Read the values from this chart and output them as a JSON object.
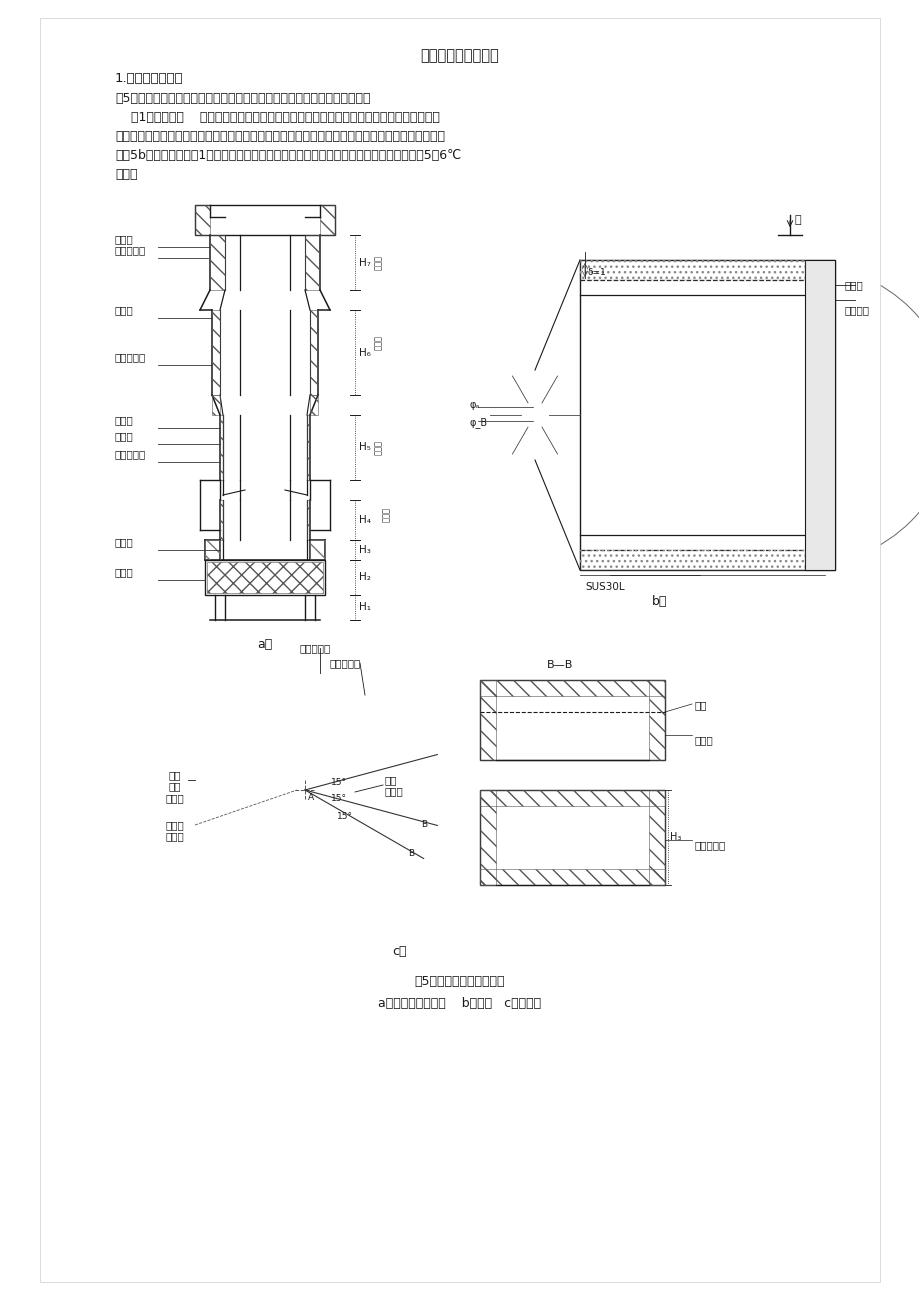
{
  "title": "外热冲天炉炉体结构",
  "background_color": "#ffffff",
  "text_color": "#1a1a1a",
  "page_width": 9.2,
  "page_height": 13.02,
  "dpi": 100,
  "section_heading": "1.炉体特点及要求",
  "paragraph1": "图5是典型外热冲天炉炉体结构。为保证溶化质量和长寿命须注意以下环节：",
  "paragraph2": "    （1）水冷风口    风口对冲天炉溶化质量十分关键，而连续作业的风口寿命更是难题。可采",
  "paragraph3": "用单排插入式水冷风口。材质：插入炉内部分一般为脱氧纯铜、炉外部分为无缝钢管（组焊而成）。",
  "paragraph4": "如图5b寿命可达半年至1年。前提是严控冷却水流量及温度，尤其入口与出口水温度差要求5～6℃",
  "paragraph5": "以内。",
  "fig_caption_line1": "图5典型外热冲天炉体结构",
  "fig_caption_line2": "a）炉体水冷及炉衬    b）风口   c）出铁口"
}
